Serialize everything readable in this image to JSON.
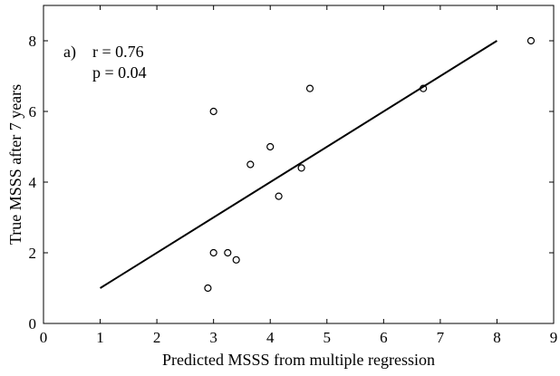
{
  "chart_data": {
    "type": "scatter",
    "xlabel": "Predicted MSSS from multiple regression",
    "ylabel": "True MSSS after 7 years",
    "xlim": [
      0,
      9
    ],
    "ylim": [
      0,
      9
    ],
    "xticks": [
      "0",
      "1",
      "2",
      "3",
      "4",
      "5",
      "6",
      "7",
      "8",
      "9"
    ],
    "yticks": [
      "0",
      "2",
      "4",
      "6",
      "8"
    ],
    "grid": false,
    "annotations": [
      "a)",
      "r = 0.76",
      "p = 0.04"
    ],
    "points": [
      {
        "x": 2.9,
        "y": 1.0
      },
      {
        "x": 3.0,
        "y": 2.0
      },
      {
        "x": 3.25,
        "y": 2.0
      },
      {
        "x": 3.4,
        "y": 1.8
      },
      {
        "x": 3.0,
        "y": 6.0
      },
      {
        "x": 3.65,
        "y": 4.5
      },
      {
        "x": 4.0,
        "y": 5.0
      },
      {
        "x": 4.15,
        "y": 3.6
      },
      {
        "x": 4.55,
        "y": 4.4
      },
      {
        "x": 4.7,
        "y": 6.65
      },
      {
        "x": 6.7,
        "y": 6.65
      },
      {
        "x": 8.6,
        "y": 8.0
      }
    ],
    "fit_line": {
      "x": [
        1,
        8
      ],
      "y": [
        1,
        8
      ]
    },
    "colors": {
      "marker": "#000000",
      "line": "#000000",
      "axes": "#000000"
    }
  }
}
